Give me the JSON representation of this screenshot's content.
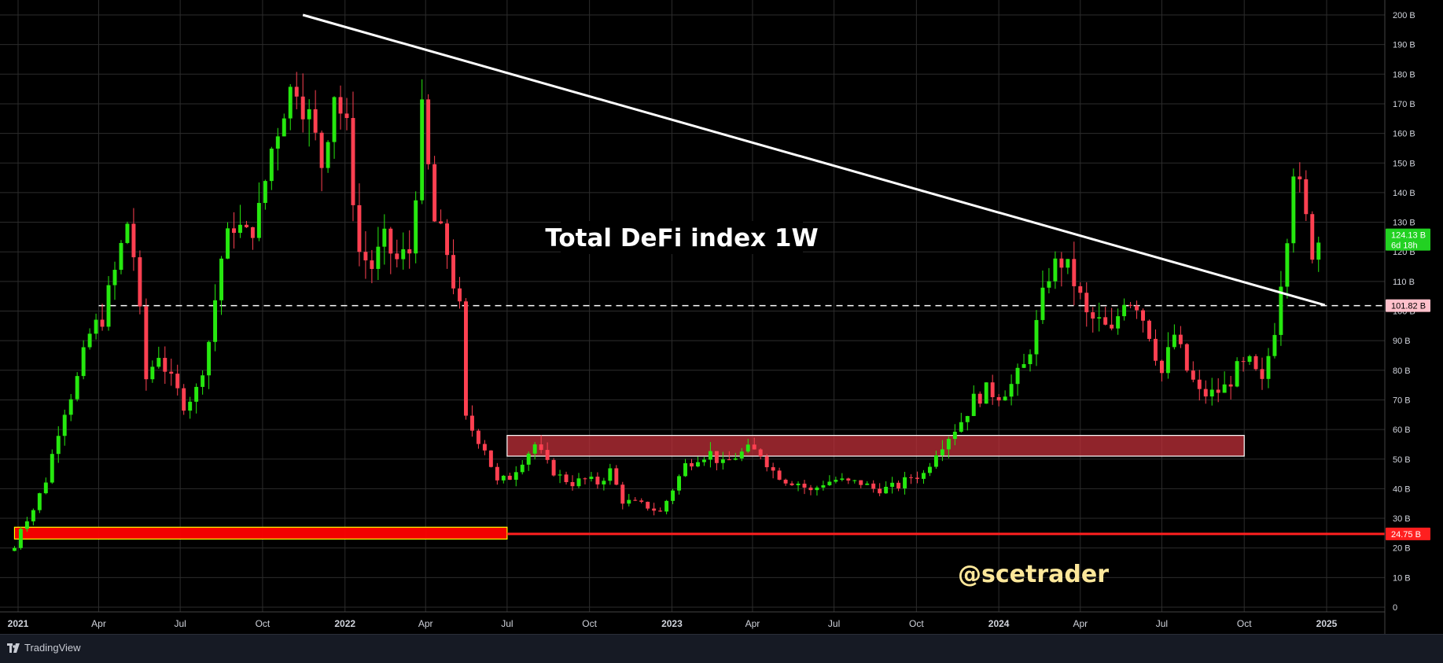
{
  "footer": {
    "brand": "TradingView"
  },
  "chart_data": {
    "type": "candlestick",
    "title": "Total DeFi index 1W",
    "watermark": "@scetrader",
    "ylim": [
      0,
      200
    ],
    "y_unit": "B",
    "y_ticks": [
      "200 B",
      "190 B",
      "180 B",
      "170 B",
      "160 B",
      "150 B",
      "140 B",
      "130 B",
      "120 B",
      "110 B",
      "100 B",
      "90 B",
      "80 B",
      "70 B",
      "60 B",
      "50 B",
      "40 B",
      "30 B",
      "20 B",
      "10 B",
      "0"
    ],
    "y_tick_values": [
      200,
      190,
      180,
      170,
      160,
      150,
      140,
      130,
      120,
      110,
      100,
      90,
      80,
      70,
      60,
      50,
      40,
      30,
      20,
      10,
      0
    ],
    "x_ticks": [
      {
        "label": "2021",
        "date": "2021-01-01",
        "bold": true
      },
      {
        "label": "Apr",
        "date": "2021-04-01",
        "bold": false
      },
      {
        "label": "Jul",
        "date": "2021-07-01",
        "bold": false
      },
      {
        "label": "Oct",
        "date": "2021-10-01",
        "bold": false
      },
      {
        "label": "2022",
        "date": "2022-01-01",
        "bold": true
      },
      {
        "label": "Apr",
        "date": "2022-04-01",
        "bold": false
      },
      {
        "label": "Jul",
        "date": "2022-07-01",
        "bold": false
      },
      {
        "label": "Oct",
        "date": "2022-10-01",
        "bold": false
      },
      {
        "label": "2023",
        "date": "2023-01-01",
        "bold": true
      },
      {
        "label": "Apr",
        "date": "2023-04-01",
        "bold": false
      },
      {
        "label": "Jul",
        "date": "2023-07-01",
        "bold": false
      },
      {
        "label": "Oct",
        "date": "2023-10-01",
        "bold": false
      },
      {
        "label": "2024",
        "date": "2024-01-01",
        "bold": true
      },
      {
        "label": "Apr",
        "date": "2024-04-01",
        "bold": false
      },
      {
        "label": "Jul",
        "date": "2024-07-01",
        "bold": false
      },
      {
        "label": "Oct",
        "date": "2024-10-01",
        "bold": false
      },
      {
        "label": "2025",
        "date": "2025-01-01",
        "bold": true
      }
    ],
    "price_labels": [
      {
        "text": "124.13 B",
        "sub": "6d 18h",
        "value": 124.13,
        "color": "#22d122",
        "text_color": "#ffffff"
      },
      {
        "text": "101.82 B",
        "value": 101.82,
        "color": "#ffc0cb",
        "text_color": "#000000"
      },
      {
        "text": "24.75 B",
        "value": 24.75,
        "color": "#ff1f1f",
        "text_color": "#ffffff"
      }
    ],
    "horizontal_line": {
      "value": 101.82,
      "style": "dashed",
      "color": "#ffffff"
    },
    "support_line": {
      "value": 24.75,
      "color": "#ff1f1f"
    },
    "trendline": {
      "start": {
        "date": "2021-11-15",
        "value": 200
      },
      "end": {
        "date": "2024-12-30",
        "value": 102
      },
      "color": "#ffffff"
    },
    "zones": [
      {
        "from_date": "2020-12-28",
        "to_date": "2022-07-01",
        "low": 23,
        "high": 27,
        "fill": "#ff0000",
        "border": "#ffff00"
      },
      {
        "from_date": "2022-07-01",
        "to_date": "2024-10-01",
        "low": 51,
        "high": 58,
        "fill": "#c0303a",
        "border": "#ffffff"
      }
    ],
    "candle_colors": {
      "up": "#26e80f",
      "down": "#ff4051"
    },
    "weekly_close_anchors": [
      {
        "date": "2020-12-28",
        "value": 20
      },
      {
        "date": "2021-01-04",
        "value": 27
      },
      {
        "date": "2021-01-18",
        "value": 33
      },
      {
        "date": "2021-02-01",
        "value": 43
      },
      {
        "date": "2021-02-15",
        "value": 60
      },
      {
        "date": "2021-02-22",
        "value": 67
      },
      {
        "date": "2021-03-08",
        "value": 77
      },
      {
        "date": "2021-03-22",
        "value": 92
      },
      {
        "date": "2021-04-05",
        "value": 98
      },
      {
        "date": "2021-04-19",
        "value": 113
      },
      {
        "date": "2021-05-03",
        "value": 130
      },
      {
        "date": "2021-05-10",
        "value": 119
      },
      {
        "date": "2021-05-24",
        "value": 77
      },
      {
        "date": "2021-06-07",
        "value": 86
      },
      {
        "date": "2021-06-21",
        "value": 76
      },
      {
        "date": "2021-07-05",
        "value": 69
      },
      {
        "date": "2021-07-19",
        "value": 73
      },
      {
        "date": "2021-08-02",
        "value": 90
      },
      {
        "date": "2021-08-16",
        "value": 118
      },
      {
        "date": "2021-08-30",
        "value": 130
      },
      {
        "date": "2021-09-13",
        "value": 125
      },
      {
        "date": "2021-09-27",
        "value": 133
      },
      {
        "date": "2021-10-11",
        "value": 155
      },
      {
        "date": "2021-10-25",
        "value": 170
      },
      {
        "date": "2021-11-08",
        "value": 178
      },
      {
        "date": "2021-11-22",
        "value": 165
      },
      {
        "date": "2021-12-06",
        "value": 150
      },
      {
        "date": "2021-12-20",
        "value": 175
      },
      {
        "date": "2022-01-03",
        "value": 160
      },
      {
        "date": "2022-01-17",
        "value": 120
      },
      {
        "date": "2022-01-31",
        "value": 115
      },
      {
        "date": "2022-02-14",
        "value": 123
      },
      {
        "date": "2022-02-28",
        "value": 117
      },
      {
        "date": "2022-03-14",
        "value": 120
      },
      {
        "date": "2022-03-28",
        "value": 165
      },
      {
        "date": "2022-04-11",
        "value": 130
      },
      {
        "date": "2022-04-25",
        "value": 120
      },
      {
        "date": "2022-05-09",
        "value": 100
      },
      {
        "date": "2022-05-16",
        "value": 63
      },
      {
        "date": "2022-06-06",
        "value": 54
      },
      {
        "date": "2022-06-20",
        "value": 42
      },
      {
        "date": "2022-07-04",
        "value": 44
      },
      {
        "date": "2022-07-18",
        "value": 50
      },
      {
        "date": "2022-08-01",
        "value": 55
      },
      {
        "date": "2022-08-15",
        "value": 48
      },
      {
        "date": "2022-08-29",
        "value": 44
      },
      {
        "date": "2022-09-12",
        "value": 42
      },
      {
        "date": "2022-09-26",
        "value": 43
      },
      {
        "date": "2022-10-10",
        "value": 42
      },
      {
        "date": "2022-10-24",
        "value": 46
      },
      {
        "date": "2022-11-07",
        "value": 36
      },
      {
        "date": "2022-11-21",
        "value": 35
      },
      {
        "date": "2022-12-05",
        "value": 34
      },
      {
        "date": "2022-12-19",
        "value": 32
      },
      {
        "date": "2023-01-02",
        "value": 40
      },
      {
        "date": "2023-01-16",
        "value": 48
      },
      {
        "date": "2023-01-30",
        "value": 51
      },
      {
        "date": "2023-02-13",
        "value": 52
      },
      {
        "date": "2023-02-27",
        "value": 48
      },
      {
        "date": "2023-03-13",
        "value": 51
      },
      {
        "date": "2023-03-27",
        "value": 53
      },
      {
        "date": "2023-04-10",
        "value": 52
      },
      {
        "date": "2023-04-24",
        "value": 46
      },
      {
        "date": "2023-05-08",
        "value": 43
      },
      {
        "date": "2023-05-22",
        "value": 42
      },
      {
        "date": "2023-06-05",
        "value": 39
      },
      {
        "date": "2023-06-19",
        "value": 42
      },
      {
        "date": "2023-07-03",
        "value": 43
      },
      {
        "date": "2023-07-17",
        "value": 42
      },
      {
        "date": "2023-07-31",
        "value": 42
      },
      {
        "date": "2023-08-14",
        "value": 40
      },
      {
        "date": "2023-08-28",
        "value": 40
      },
      {
        "date": "2023-09-11",
        "value": 41
      },
      {
        "date": "2023-09-25",
        "value": 44
      },
      {
        "date": "2023-10-09",
        "value": 45
      },
      {
        "date": "2023-10-23",
        "value": 53
      },
      {
        "date": "2023-11-06",
        "value": 58
      },
      {
        "date": "2023-11-20",
        "value": 63
      },
      {
        "date": "2023-12-04",
        "value": 70
      },
      {
        "date": "2023-12-18",
        "value": 73
      },
      {
        "date": "2024-01-01",
        "value": 72
      },
      {
        "date": "2024-01-15",
        "value": 75
      },
      {
        "date": "2024-01-29",
        "value": 81
      },
      {
        "date": "2024-02-12",
        "value": 95
      },
      {
        "date": "2024-02-26",
        "value": 113
      },
      {
        "date": "2024-03-11",
        "value": 117
      },
      {
        "date": "2024-03-25",
        "value": 110
      },
      {
        "date": "2024-04-08",
        "value": 98
      },
      {
        "date": "2024-04-22",
        "value": 96
      },
      {
        "date": "2024-05-06",
        "value": 92
      },
      {
        "date": "2024-05-20",
        "value": 105
      },
      {
        "date": "2024-06-03",
        "value": 103
      },
      {
        "date": "2024-06-17",
        "value": 93
      },
      {
        "date": "2024-07-01",
        "value": 79
      },
      {
        "date": "2024-07-15",
        "value": 92
      },
      {
        "date": "2024-07-29",
        "value": 80
      },
      {
        "date": "2024-08-12",
        "value": 72
      },
      {
        "date": "2024-08-26",
        "value": 72
      },
      {
        "date": "2024-09-09",
        "value": 74
      },
      {
        "date": "2024-09-23",
        "value": 80
      },
      {
        "date": "2024-10-07",
        "value": 82
      },
      {
        "date": "2024-10-21",
        "value": 75
      },
      {
        "date": "2024-11-04",
        "value": 95
      },
      {
        "date": "2024-11-18",
        "value": 128
      },
      {
        "date": "2024-11-25",
        "value": 150
      },
      {
        "date": "2024-12-09",
        "value": 130
      },
      {
        "date": "2024-12-16",
        "value": 121
      },
      {
        "date": "2024-12-23",
        "value": 124.13
      }
    ]
  }
}
